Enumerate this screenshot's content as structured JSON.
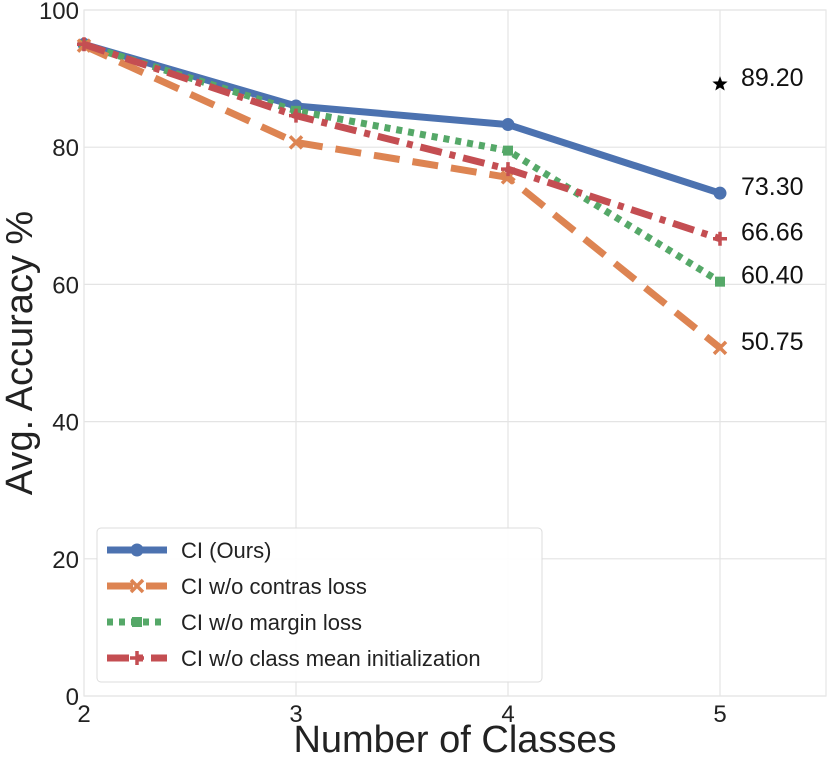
{
  "chart_data": {
    "type": "line",
    "title": "",
    "xlabel": "Number of Classes",
    "ylabel": "Avg. Accuracy %",
    "x": [
      2,
      3,
      4,
      5
    ],
    "xticks": [
      "2",
      "3",
      "4",
      "5"
    ],
    "yticks": [
      "0",
      "20",
      "40",
      "60",
      "80",
      "100"
    ],
    "xlim": [
      2,
      5.5
    ],
    "ylim": [
      0,
      100
    ],
    "grid": true,
    "legend_position": "bottom-left",
    "series": [
      {
        "name": "CI (Ours)",
        "values": [
          95.0,
          86.0,
          83.3,
          73.3
        ],
        "color": "#4c72b0",
        "style": "solid",
        "marker": "circle"
      },
      {
        "name": "CI w/o contras loss",
        "values": [
          94.8,
          80.7,
          75.6,
          50.75
        ],
        "color": "#dd8452",
        "style": "dashed",
        "marker": "x"
      },
      {
        "name": "CI w/o margin loss",
        "values": [
          94.9,
          85.3,
          79.5,
          60.4
        ],
        "color": "#55a868",
        "style": "dotted",
        "marker": "square"
      },
      {
        "name": "CI w/o class mean initialization",
        "values": [
          95.0,
          84.6,
          76.8,
          66.66
        ],
        "color": "#c44e52",
        "style": "dashdot",
        "marker": "plus"
      }
    ],
    "annotations": [
      {
        "text": "89.20",
        "x": 5,
        "y": 89.2,
        "marker": "star"
      },
      {
        "text": "73.30",
        "x": 5,
        "y": 73.3
      },
      {
        "text": "66.66",
        "x": 5,
        "y": 66.66
      },
      {
        "text": "60.40",
        "x": 5,
        "y": 60.4
      },
      {
        "text": "50.75",
        "x": 5,
        "y": 50.75
      }
    ]
  }
}
